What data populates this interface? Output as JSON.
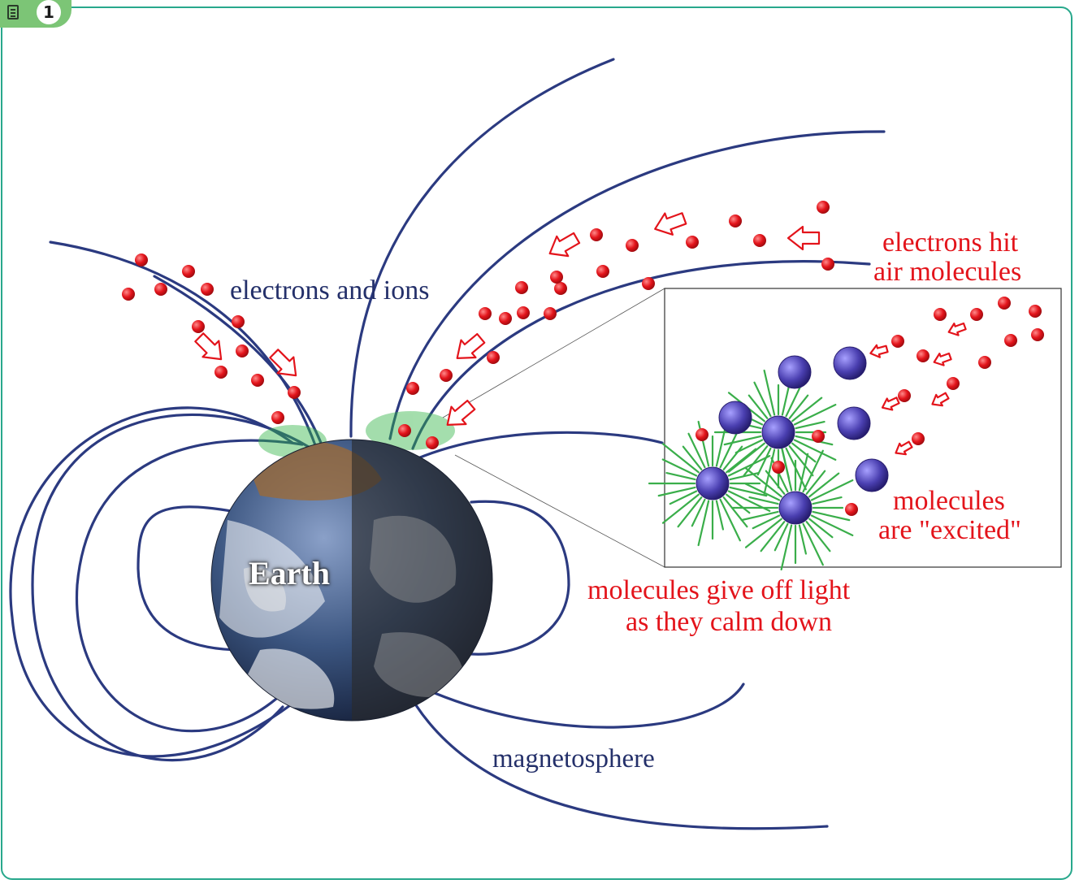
{
  "badge": {
    "number": "1",
    "icon": "document-icon"
  },
  "labels": {
    "electrons_ions": "electrons and ions",
    "electrons_hit_1": "electrons hit",
    "electrons_hit_2": "air molecules",
    "excited_1": "molecules",
    "excited_2": "are \"excited\"",
    "give_off_1": "molecules give off light",
    "give_off_2": "as they calm down",
    "magnetosphere": "magnetosphere",
    "earth": "Earth"
  },
  "colors": {
    "field_lines": "#2b3a80",
    "particles": "#e3141b",
    "molecules": "#4a3fb0",
    "glow": "#35b54a",
    "frame": "#28a88c",
    "badge": "#7cc576"
  }
}
